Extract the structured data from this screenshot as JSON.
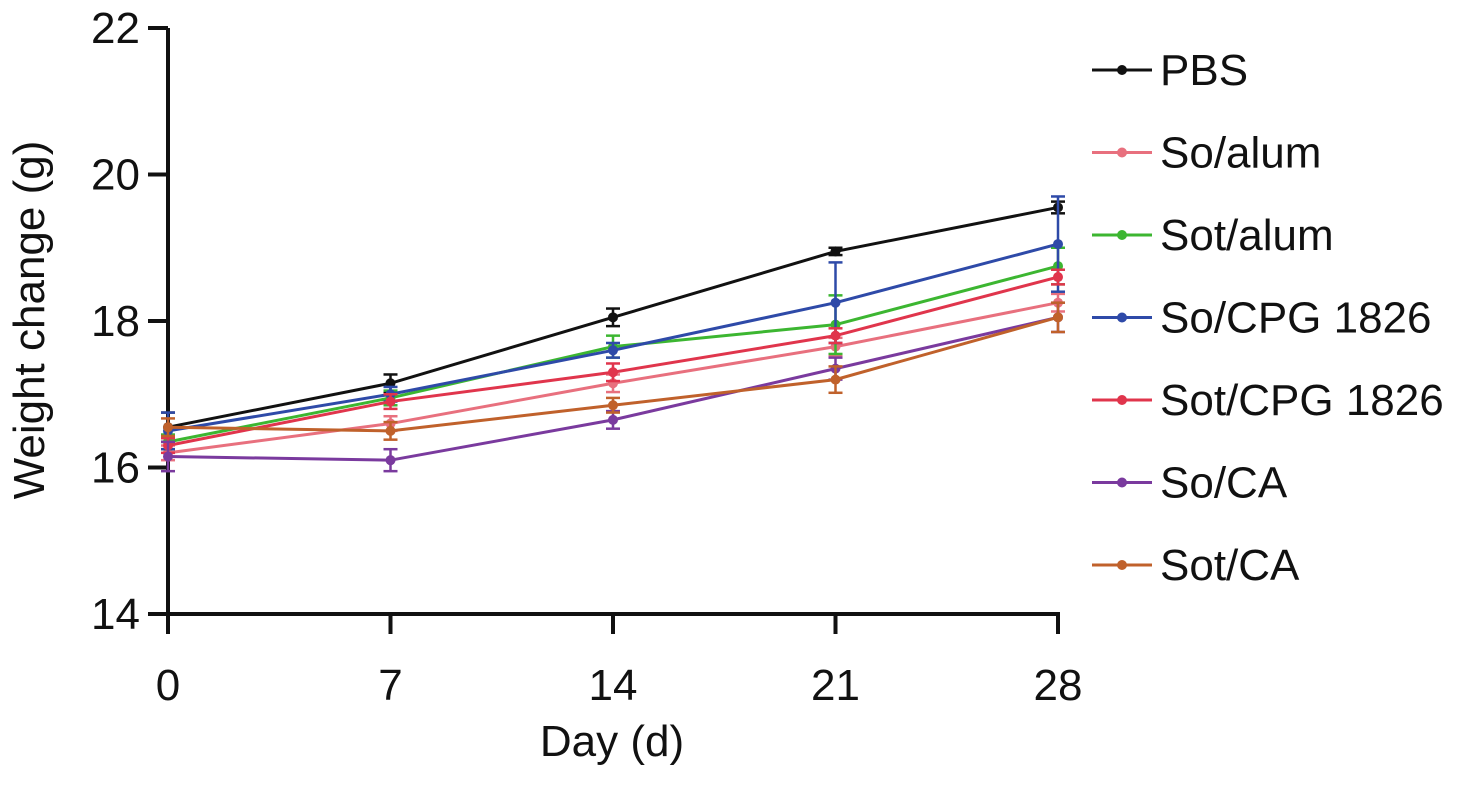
{
  "chart_data": {
    "type": "line",
    "title": "",
    "xlabel": "Day (d)",
    "ylabel": "Weight change (g)",
    "x": [
      0,
      7,
      14,
      21,
      28
    ],
    "x_tick_labels": [
      "0",
      "7",
      "14",
      "21",
      "28"
    ],
    "xlim": [
      0,
      28
    ],
    "y_ticks": [
      14,
      16,
      18,
      20,
      22
    ],
    "y_tick_labels": [
      "14",
      "16",
      "18",
      "20",
      "22"
    ],
    "ylim": [
      14,
      22
    ],
    "grid": false,
    "legend_position": "right",
    "series": [
      {
        "name": "PBS",
        "color": "#111111",
        "values": [
          16.55,
          17.15,
          18.05,
          18.95,
          19.55
        ],
        "errors": [
          0.2,
          0.12,
          0.12,
          0.05,
          0.08
        ]
      },
      {
        "name": "So/alum",
        "color": "#e8707e",
        "values": [
          16.2,
          16.6,
          17.15,
          17.65,
          18.25
        ],
        "errors": [
          0.1,
          0.1,
          0.12,
          0.12,
          0.12
        ]
      },
      {
        "name": "Sot/alum",
        "color": "#3cb631",
        "values": [
          16.35,
          16.95,
          17.65,
          17.95,
          18.75
        ],
        "errors": [
          0.1,
          0.1,
          0.15,
          0.4,
          0.25
        ]
      },
      {
        "name": "So/CPG 1826",
        "color": "#2e4aa8",
        "values": [
          16.5,
          17.0,
          17.6,
          18.25,
          19.05
        ],
        "errors": [
          0.25,
          0.1,
          0.1,
          0.55,
          0.65
        ]
      },
      {
        "name": "Sot/CPG 1826",
        "color": "#e0354c",
        "values": [
          16.3,
          16.9,
          17.3,
          17.8,
          18.6
        ],
        "errors": [
          0.1,
          0.1,
          0.12,
          0.1,
          0.1
        ]
      },
      {
        "name": "So/CA",
        "color": "#7a3a9e",
        "values": [
          16.15,
          16.1,
          16.65,
          17.35,
          18.05
        ],
        "errors": [
          0.2,
          0.15,
          0.12,
          0.15,
          0.2
        ]
      },
      {
        "name": "Sot/CA",
        "color": "#c0612b",
        "values": [
          16.55,
          16.5,
          16.85,
          17.2,
          18.05
        ],
        "errors": [
          0.12,
          0.12,
          0.1,
          0.18,
          0.2
        ]
      }
    ]
  }
}
